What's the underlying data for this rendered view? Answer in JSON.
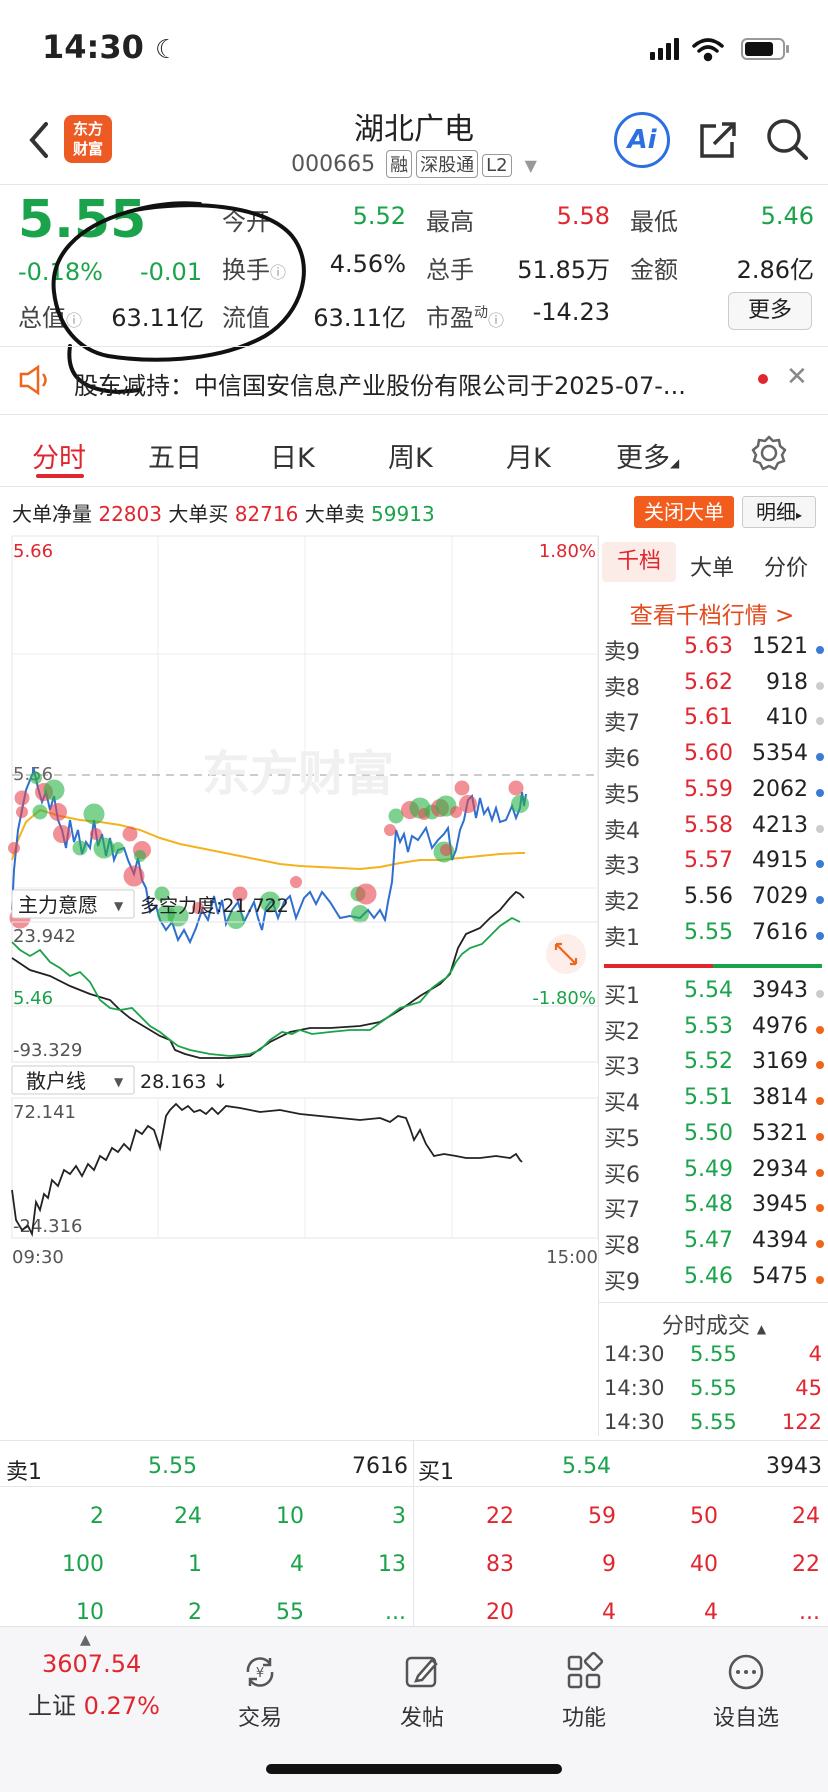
{
  "status_bar": {
    "time": "14:30"
  },
  "header": {
    "logo_text_1": "东方",
    "logo_text_2": "财富",
    "stock_name": "湖北广电",
    "stock_code": "000665",
    "tags": [
      "融",
      "深股通",
      "L2"
    ],
    "ai_label": "Ai"
  },
  "quote": {
    "price": "5.55",
    "change_pct": "-0.18%",
    "change": "-0.01",
    "open_label": "今开",
    "open": "5.52",
    "high_label": "最高",
    "high": "5.58",
    "low_label": "最低",
    "low": "5.46",
    "turnover_label": "换手",
    "turnover": "4.56%",
    "volume_label": "总手",
    "volume": "51.85万",
    "amount_label": "金额",
    "amount": "2.86亿",
    "mktcap_label": "总值",
    "mktcap": "63.11亿",
    "float_label": "流值",
    "float_cap": "63.11亿",
    "pe_label": "市盈",
    "pe_sup": "动",
    "pe": "-14.23",
    "more_label": "更多"
  },
  "news": {
    "text": "股东减持：中信国安信息产业股份有限公司于2025-07-..."
  },
  "tabs": [
    "分时",
    "五日",
    "日K",
    "周K",
    "月K",
    "更多"
  ],
  "big_order": {
    "net_label": "大单净量",
    "net": "22803",
    "buy_label": "大单买",
    "buy": "82716",
    "sell_label": "大单卖",
    "sell": "59913",
    "close_label": "关闭大单",
    "detail_label": "明细"
  },
  "chart_labels": {
    "price_high": "5.66",
    "price_low": "5.46",
    "price_mid": "5.56",
    "pct_high": "1.80%",
    "pct_low": "-1.80%",
    "ind1_name": "主力意愿",
    "ind1_value": "多空力度:21.722",
    "ind1_high": "23.942",
    "ind1_low": "-93.329",
    "ind2_name": "散户线",
    "ind2_value": "28.163 ↓",
    "ind2_high": "72.141",
    "ind2_low": "-24.316",
    "time_start": "09:30",
    "time_end": "15:00",
    "watermark": "东方财富"
  },
  "right_panel": {
    "tabs": [
      "千档",
      "大单",
      "分价"
    ],
    "view_link": "查看千档行情 >",
    "sells": [
      {
        "label": "卖9",
        "price": "5.63",
        "vol": "1521",
        "dot": "#3a7bd5"
      },
      {
        "label": "卖8",
        "price": "5.62",
        "vol": "918",
        "dot": "#cccccc"
      },
      {
        "label": "卖7",
        "price": "5.61",
        "vol": "410",
        "dot": "#cccccc"
      },
      {
        "label": "卖6",
        "price": "5.60",
        "vol": "5354",
        "dot": "#3a7bd5"
      },
      {
        "label": "卖5",
        "price": "5.59",
        "vol": "2062",
        "dot": "#3a7bd5"
      },
      {
        "label": "卖4",
        "price": "5.58",
        "vol": "4213",
        "dot": "#cccccc"
      },
      {
        "label": "卖3",
        "price": "5.57",
        "vol": "4915",
        "dot": "#3a7bd5"
      },
      {
        "label": "卖2",
        "price": "5.56",
        "vol": "7029",
        "dot": "#3a7bd5"
      },
      {
        "label": "卖1",
        "price": "5.55",
        "vol": "7616",
        "dot": "#3a7bd5"
      }
    ],
    "buys": [
      {
        "label": "买1",
        "price": "5.54",
        "vol": "3943",
        "dot": "#cccccc"
      },
      {
        "label": "买2",
        "price": "5.53",
        "vol": "4976",
        "dot": "#f0651c"
      },
      {
        "label": "买3",
        "price": "5.52",
        "vol": "3169",
        "dot": "#f0651c"
      },
      {
        "label": "买4",
        "price": "5.51",
        "vol": "3814",
        "dot": "#f0651c"
      },
      {
        "label": "买5",
        "price": "5.50",
        "vol": "5321",
        "dot": "#f0651c"
      },
      {
        "label": "买6",
        "price": "5.49",
        "vol": "2934",
        "dot": "#f0651c"
      },
      {
        "label": "买7",
        "price": "5.48",
        "vol": "3945",
        "dot": "#f0651c"
      },
      {
        "label": "买8",
        "price": "5.47",
        "vol": "4394",
        "dot": "#f0651c"
      },
      {
        "label": "买9",
        "price": "5.46",
        "vol": "5475",
        "dot": "#f0651c"
      }
    ],
    "ticks_title": "分时成交",
    "ticks": [
      {
        "time": "14:30",
        "price": "5.55",
        "vol": "4"
      },
      {
        "time": "14:30",
        "price": "5.55",
        "vol": "45"
      },
      {
        "time": "14:30",
        "price": "5.55",
        "vol": "122"
      }
    ]
  },
  "bottom_quote": {
    "sell1_label": "卖1",
    "sell1_price": "5.55",
    "sell1_vol": "7616",
    "buy1_label": "买1",
    "buy1_price": "5.54",
    "buy1_vol": "3943",
    "sell_rows": [
      [
        "2",
        "24",
        "10",
        "3"
      ],
      [
        "100",
        "1",
        "4",
        "13"
      ],
      [
        "10",
        "2",
        "55",
        "..."
      ]
    ],
    "buy_rows": [
      [
        "22",
        "59",
        "50",
        "24"
      ],
      [
        "83",
        "9",
        "40",
        "22"
      ],
      [
        "20",
        "4",
        "4",
        "..."
      ]
    ]
  },
  "bottom_nav": {
    "index_value": "3607.54",
    "index_name": "上证",
    "index_change": "0.27%",
    "items": [
      "交易",
      "发帖",
      "功能",
      "设自选"
    ]
  },
  "colors": {
    "up": "#e0262f",
    "down": "#1aa34a",
    "accent": "#f25c1c",
    "price_line": "#2f6fd0",
    "avg_line": "#f5b21f"
  }
}
